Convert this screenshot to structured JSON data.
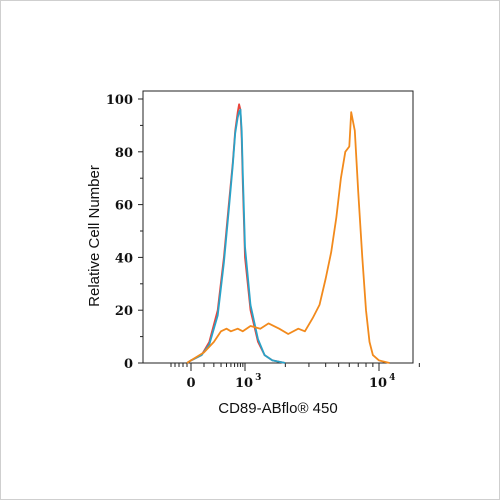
{
  "chart_data": {
    "type": "line",
    "title": "",
    "xlabel": "CD89-ABflo® 450",
    "ylabel": "Relative Cell Number",
    "x_scale": "biexponential",
    "xlim": [
      -100,
      20000
    ],
    "ylim": [
      0,
      100
    ],
    "x_ticks": [
      {
        "base": "0",
        "exp": "",
        "value": 0
      },
      {
        "base": "10",
        "exp": "3",
        "value": 1000
      },
      {
        "base": "10",
        "exp": "4",
        "value": 10000
      }
    ],
    "y_ticks": [
      "0",
      "20",
      "40",
      "60",
      "80",
      "100"
    ],
    "grid": false,
    "legend": "none",
    "series": [
      {
        "color": "#e8453c",
        "x": [
          -20,
          0,
          80,
          150,
          250,
          350,
          450,
          550,
          620,
          700,
          750,
          800,
          850,
          900,
          1000,
          1100,
          1250,
          1400,
          1600,
          2000
        ],
        "y": [
          0,
          1,
          3,
          8,
          20,
          40,
          60,
          76,
          88,
          95,
          98,
          96,
          85,
          68,
          40,
          20,
          8,
          3,
          1,
          0
        ]
      },
      {
        "color": "#29a3c8",
        "x": [
          -20,
          0,
          80,
          150,
          250,
          350,
          450,
          550,
          620,
          700,
          750,
          800,
          850,
          900,
          1000,
          1100,
          1250,
          1400,
          1600,
          2000
        ],
        "y": [
          0,
          1,
          3,
          7,
          18,
          38,
          58,
          75,
          87,
          93,
          95,
          96,
          88,
          72,
          44,
          22,
          9,
          3,
          1,
          0
        ]
      },
      {
        "color": "#f28a1c",
        "x": [
          -20,
          0,
          100,
          200,
          300,
          400,
          500,
          700,
          900,
          1100,
          1300,
          1500,
          1800,
          2100,
          2500,
          2800,
          3200,
          3600,
          4000,
          4400,
          4800,
          5200,
          5600,
          6000,
          6200,
          6600,
          7000,
          7500,
          8000,
          8500,
          9000,
          10000,
          12000
        ],
        "y": [
          0,
          1,
          4,
          8,
          12,
          13,
          12,
          13,
          12,
          14,
          13,
          15,
          13,
          11,
          13,
          12,
          17,
          22,
          32,
          42,
          55,
          70,
          80,
          82,
          95,
          88,
          65,
          40,
          20,
          8,
          3,
          1,
          0
        ]
      }
    ]
  }
}
